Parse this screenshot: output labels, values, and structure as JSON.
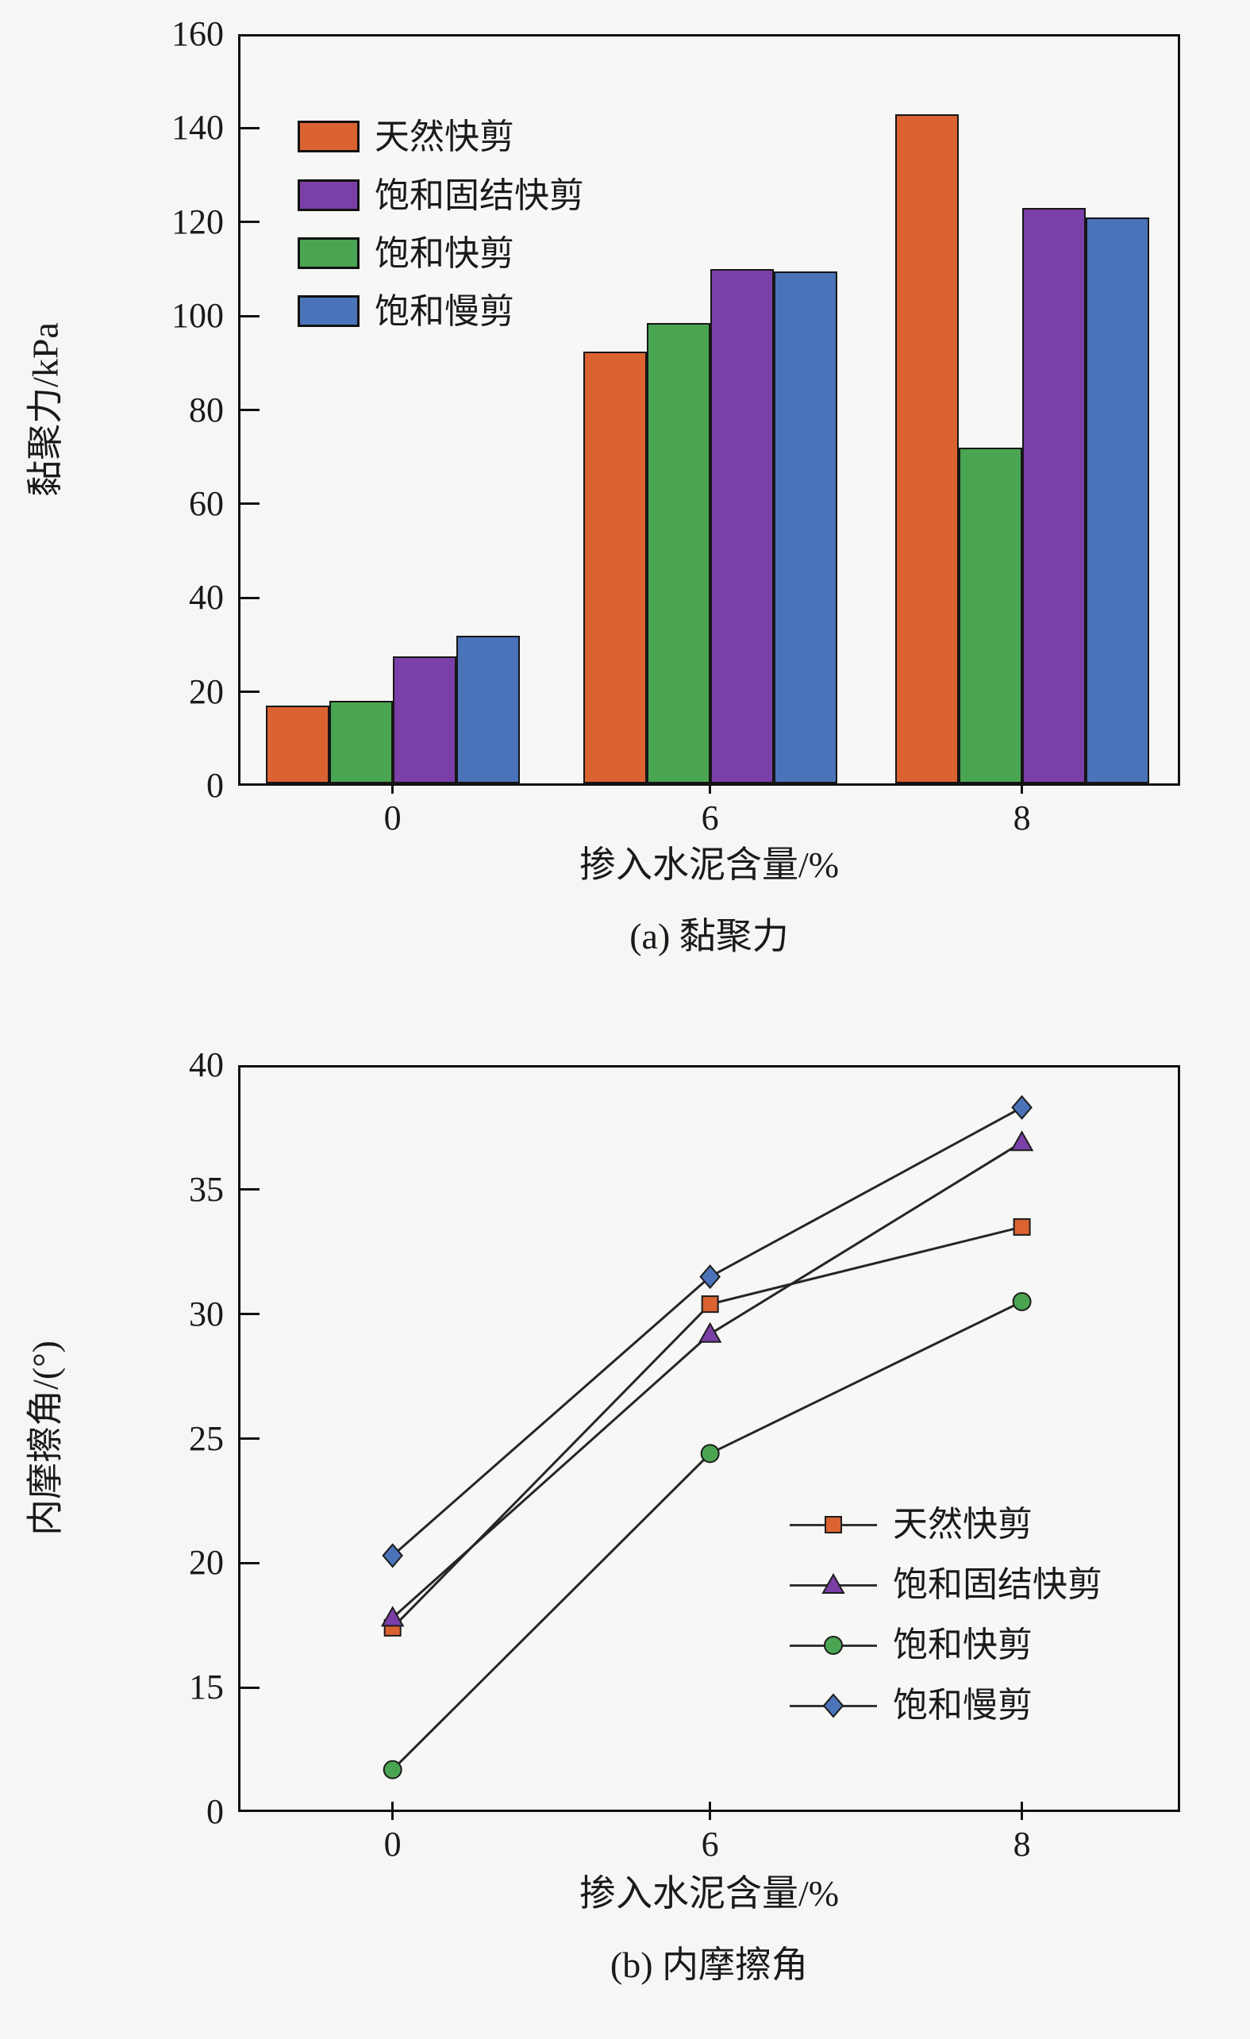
{
  "figure": {
    "background": "#f6f6f4",
    "series_colors": {
      "natural_quick": "#DB6332",
      "saturated_consolidated_quick": "#7B3FA8",
      "saturated_quick": "#4AA552",
      "saturated_slow": "#4B73B9"
    },
    "axis_color": "#111111",
    "line_color": "#262626"
  },
  "chart_data": [
    {
      "id": "a",
      "type": "bar",
      "caption": "(a) 黏聚力",
      "xlabel": "掺入水泥含量/%",
      "ylabel": "黏聚力/kPa",
      "categories": [
        "0",
        "6",
        "8"
      ],
      "ylim": [
        0,
        160
      ],
      "y_ticks": [
        0,
        20,
        40,
        60,
        80,
        100,
        120,
        140,
        160
      ],
      "grid": false,
      "legend_position": "top-left-inside",
      "legend_order": [
        "天然快剪",
        "饱和固结快剪",
        "饱和快剪",
        "饱和慢剪"
      ],
      "plot_order": [
        "天然快剪",
        "饱和快剪",
        "饱和固结快剪",
        "饱和慢剪"
      ],
      "series": [
        {
          "name": "天然快剪",
          "color": "#DB6332",
          "values": [
            17,
            92.5,
            143
          ]
        },
        {
          "name": "饱和固结快剪",
          "color": "#7B3FA8",
          "values": [
            27.5,
            110,
            123
          ]
        },
        {
          "name": "饱和快剪",
          "color": "#4AA552",
          "values": [
            18,
            98.5,
            72
          ]
        },
        {
          "name": "饱和慢剪",
          "color": "#4B73B9",
          "values": [
            32,
            109.5,
            121
          ]
        }
      ]
    },
    {
      "id": "b",
      "type": "line",
      "caption": "(b) 内摩擦角",
      "xlabel": "掺入水泥含量/%",
      "ylabel": "内摩擦角/(°)",
      "categories": [
        "0",
        "6",
        "8"
      ],
      "y_tick_labels": [
        "40",
        "35",
        "30",
        "25",
        "20",
        "15",
        "0"
      ],
      "y_axis_note": "broken axis: segment 0-15 compressed into one tick interval",
      "ylim_upper_segment": [
        15,
        40
      ],
      "grid": false,
      "legend_position": "right-middle-inside",
      "legend_order": [
        "天然快剪",
        "饱和固结快剪",
        "饱和快剪",
        "饱和慢剪"
      ],
      "series": [
        {
          "name": "天然快剪",
          "marker": "square",
          "color": "#DB6332",
          "values": [
            17.4,
            30.4,
            33.5
          ]
        },
        {
          "name": "饱和固结快剪",
          "marker": "triangle",
          "color": "#7B3FA8",
          "values": [
            17.8,
            29.2,
            36.9
          ]
        },
        {
          "name": "饱和快剪",
          "marker": "circle",
          "color": "#4AA552",
          "values": [
            5.1,
            24.4,
            30.5
          ]
        },
        {
          "name": "饱和慢剪",
          "marker": "diamond",
          "color": "#4B73B9",
          "values": [
            20.3,
            31.5,
            38.3
          ]
        }
      ]
    }
  ]
}
